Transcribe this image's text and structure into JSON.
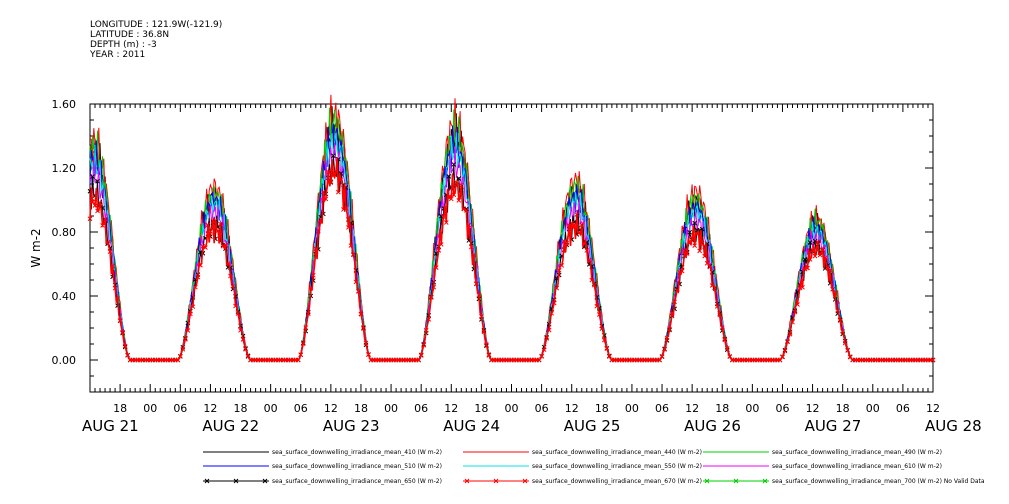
{
  "header": {
    "longitude": "LONGITUDE : 121.9W(-121.9)",
    "latitude": "LATITUDE : 36.8N",
    "depth": "DEPTH (m) : -3",
    "year": "YEAR : 2011"
  },
  "chart_data": {
    "type": "line",
    "ylabel": "W m-2",
    "ylim": [
      -0.2,
      1.6
    ],
    "yticks": [
      0.0,
      0.4,
      0.8,
      1.2,
      1.6
    ],
    "ytick_labels": [
      "0.00",
      "0.40",
      "0.80",
      "1.20",
      "1.60"
    ],
    "x_start_hour": 12,
    "x_end_hour": 180,
    "hour_tick_labels": [
      "18",
      "00",
      "06",
      "12",
      "18",
      "00",
      "06",
      "12",
      "18",
      "00",
      "06",
      "12",
      "18",
      "00",
      "06",
      "12",
      "18",
      "00",
      "06",
      "12",
      "18",
      "00",
      "06",
      "12",
      "18",
      "00",
      "06",
      "12"
    ],
    "date_labels": [
      "AUG 21",
      "AUG 22",
      "AUG 23",
      "AUG 24",
      "AUG 25",
      "AUG 26",
      "AUG 27",
      "AUG 28"
    ],
    "days": [
      {
        "date": "AUG 21",
        "peak_by_series": [
          1.3,
          1.36,
          1.32,
          1.25,
          1.22,
          1.15,
          1.05,
          1.0
        ]
      },
      {
        "date": "AUG 22",
        "peak_by_series": [
          1.02,
          1.08,
          1.04,
          1.0,
          0.97,
          0.92,
          0.85,
          0.82
        ]
      },
      {
        "date": "AUG 23",
        "peak_by_series": [
          1.45,
          1.53,
          1.48,
          1.4,
          1.35,
          1.28,
          1.2,
          1.18
        ]
      },
      {
        "date": "AUG 24",
        "peak_by_series": [
          1.4,
          1.48,
          1.42,
          1.34,
          1.3,
          1.22,
          1.12,
          1.08
        ]
      },
      {
        "date": "AUG 25",
        "peak_by_series": [
          1.05,
          1.12,
          1.08,
          1.02,
          0.98,
          0.93,
          0.86,
          0.83
        ]
      },
      {
        "date": "AUG 26",
        "peak_by_series": [
          0.98,
          1.05,
          1.0,
          0.95,
          0.92,
          0.87,
          0.8,
          0.78
        ]
      },
      {
        "date": "AUG 27",
        "peak_by_series": [
          0.84,
          0.88,
          0.86,
          0.82,
          0.8,
          0.76,
          0.71,
          0.69
        ]
      }
    ],
    "series": [
      {
        "name": "sea_surface_downwelling_irradiance_mean_410 (W m-2)",
        "color": "#000000",
        "marker": "none"
      },
      {
        "name": "sea_surface_downwelling_irradiance_mean_440 (W m-2)",
        "color": "#ff0000",
        "marker": "none"
      },
      {
        "name": "sea_surface_downwelling_irradiance_mean_490 (W m-2)",
        "color": "#00cc00",
        "marker": "none"
      },
      {
        "name": "sea_surface_downwelling_irradiance_mean_510 (W m-2)",
        "color": "#0000ff",
        "marker": "none"
      },
      {
        "name": "sea_surface_downwelling_irradiance_mean_550 (W m-2)",
        "color": "#00e5ee",
        "marker": "none"
      },
      {
        "name": "sea_surface_downwelling_irradiance_mean_610 (W m-2)",
        "color": "#ee00ee",
        "marker": "none"
      },
      {
        "name": "sea_surface_downwelling_irradiance_mean_650 (W m-2)",
        "color": "#000000",
        "marker": "x"
      },
      {
        "name": "sea_surface_downwelling_irradiance_mean_670 (W m-2)",
        "color": "#ff0000",
        "marker": "x"
      },
      {
        "name": "sea_surface_downwelling_irradiance_mean_700 (W m-2) No Valid Data",
        "color": "#00cc00",
        "marker": "x"
      }
    ],
    "grid": false,
    "legend_position": "bottom"
  }
}
